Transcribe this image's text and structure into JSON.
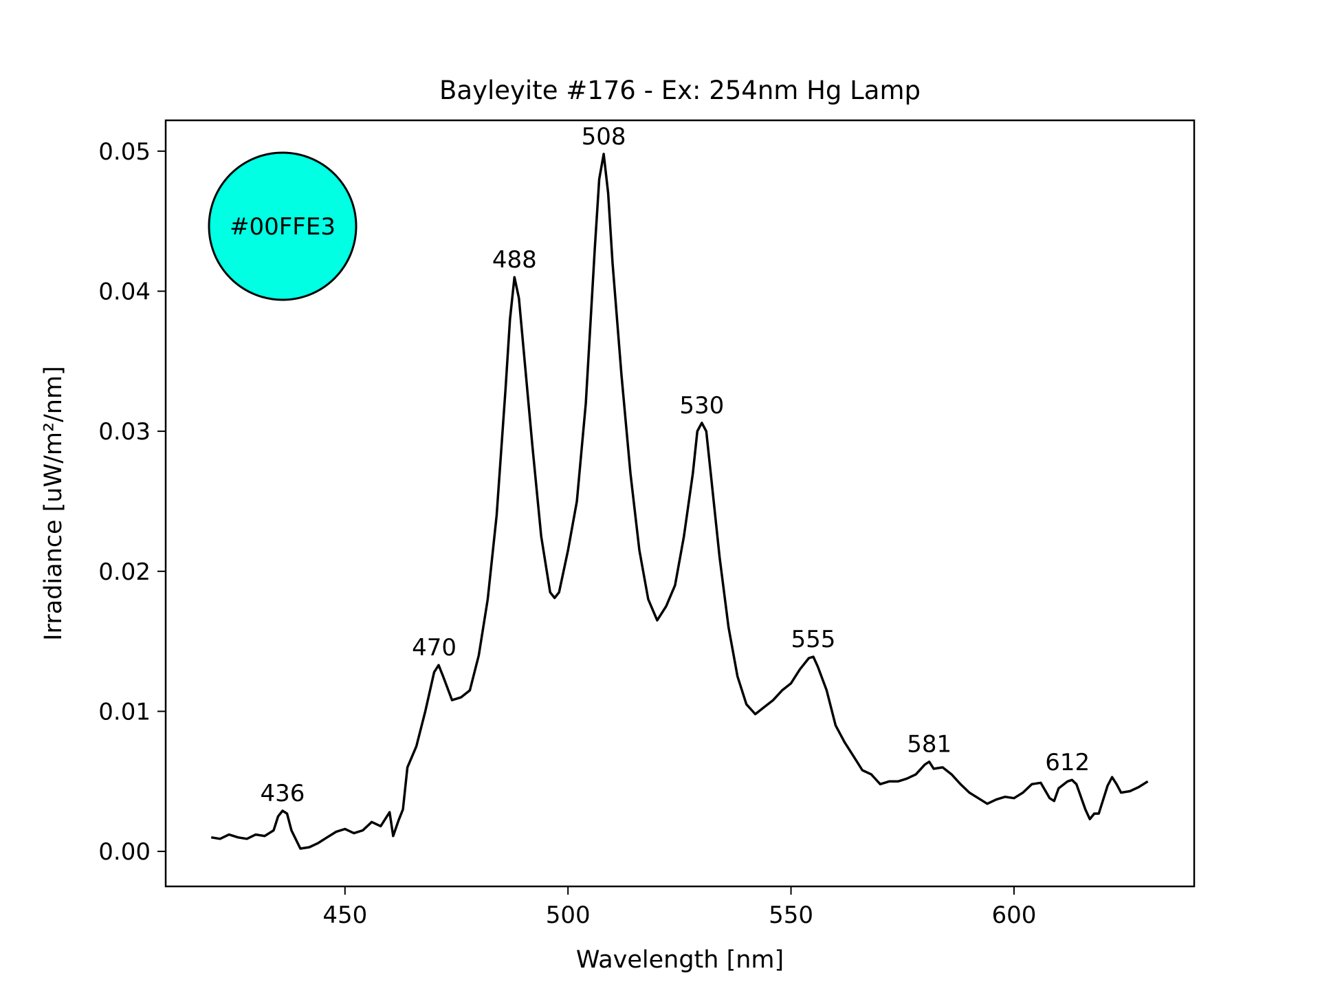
{
  "chart_data": {
    "type": "line",
    "title": "Bayleyite #176 - Ex: 254nm Hg Lamp",
    "xlabel": "Wavelength [nm]",
    "ylabel": "Irradiance [uW/m²/nm]",
    "xlim": [
      409.8,
      640.4
    ],
    "ylim": [
      -0.0025,
      0.0522
    ],
    "xticks": [
      450,
      500,
      550,
      600
    ],
    "xtick_labels": [
      "450",
      "500",
      "550",
      "600"
    ],
    "yticks": [
      0.0,
      0.01,
      0.02,
      0.03,
      0.04,
      0.05
    ],
    "ytick_labels": [
      "0.00",
      "0.01",
      "0.02",
      "0.03",
      "0.04",
      "0.05"
    ],
    "grid": false,
    "series": [
      {
        "name": "spectrum",
        "color": "#000000",
        "x": [
          420,
          422,
          424,
          426,
          428,
          430,
          432,
          434,
          435,
          436,
          437,
          438,
          440,
          442,
          444,
          446,
          448,
          450,
          452,
          454,
          456,
          458,
          460,
          460.8,
          462,
          463,
          464,
          466,
          468,
          470,
          471,
          472,
          474,
          476,
          478,
          480,
          482,
          484,
          486,
          487,
          488,
          489,
          490,
          492,
          494,
          496,
          497,
          498,
          500,
          502,
          504,
          506,
          507,
          508,
          509,
          510,
          512,
          514,
          516,
          518,
          520,
          522,
          524,
          526,
          528,
          529,
          530,
          531,
          532,
          534,
          536,
          538,
          540,
          542,
          544,
          546,
          548,
          550,
          552,
          554,
          555,
          556,
          558,
          560,
          562,
          564,
          566,
          568,
          570,
          572,
          574,
          576,
          578,
          580,
          581,
          582,
          584,
          586,
          588,
          590,
          592,
          594,
          596,
          598,
          600,
          602,
          604,
          606,
          608,
          609,
          610,
          612,
          613,
          614,
          616,
          617,
          618,
          619,
          621,
          622,
          623,
          624,
          626,
          628,
          630
        ],
        "y": [
          0.001,
          0.0009,
          0.0012,
          0.001,
          0.0009,
          0.0012,
          0.0011,
          0.0015,
          0.0025,
          0.0029,
          0.0027,
          0.0015,
          0.0002,
          0.0003,
          0.0006,
          0.001,
          0.0014,
          0.0016,
          0.0013,
          0.0015,
          0.0021,
          0.0018,
          0.0028,
          0.0011,
          0.0022,
          0.003,
          0.006,
          0.0075,
          0.01,
          0.0128,
          0.0133,
          0.0125,
          0.0108,
          0.011,
          0.0115,
          0.014,
          0.018,
          0.024,
          0.033,
          0.038,
          0.041,
          0.0395,
          0.036,
          0.029,
          0.0225,
          0.0185,
          0.0181,
          0.0185,
          0.0215,
          0.025,
          0.032,
          0.043,
          0.048,
          0.0498,
          0.047,
          0.042,
          0.034,
          0.027,
          0.0215,
          0.018,
          0.0165,
          0.0175,
          0.019,
          0.0225,
          0.027,
          0.03,
          0.0306,
          0.03,
          0.027,
          0.021,
          0.016,
          0.0125,
          0.0105,
          0.0098,
          0.0103,
          0.0108,
          0.0115,
          0.012,
          0.013,
          0.0138,
          0.0139,
          0.0132,
          0.0115,
          0.009,
          0.0078,
          0.0068,
          0.0058,
          0.0055,
          0.0048,
          0.005,
          0.005,
          0.0052,
          0.0055,
          0.0062,
          0.0064,
          0.0059,
          0.006,
          0.0055,
          0.0048,
          0.0042,
          0.0038,
          0.0034,
          0.0037,
          0.0039,
          0.0038,
          0.0042,
          0.0048,
          0.0049,
          0.0038,
          0.0036,
          0.0045,
          0.005,
          0.0051,
          0.0048,
          0.003,
          0.0023,
          0.0027,
          0.0027,
          0.0047,
          0.0053,
          0.0048,
          0.0042,
          0.0043,
          0.0046,
          0.005
        ]
      }
    ],
    "annotations": [
      {
        "text": "436",
        "x": 436,
        "y": 0.0029
      },
      {
        "text": "470",
        "x": 470,
        "y": 0.0133
      },
      {
        "text": "488",
        "x": 488,
        "y": 0.041
      },
      {
        "text": "508",
        "x": 508,
        "y": 0.0498
      },
      {
        "text": "530",
        "x": 530,
        "y": 0.0306
      },
      {
        "text": "555",
        "x": 555,
        "y": 0.0139
      },
      {
        "text": "581",
        "x": 581,
        "y": 0.0064
      },
      {
        "text": "612",
        "x": 612,
        "y": 0.0051
      }
    ],
    "color_swatch": {
      "label": "#00FFE3",
      "color": "#00FFE3"
    }
  }
}
